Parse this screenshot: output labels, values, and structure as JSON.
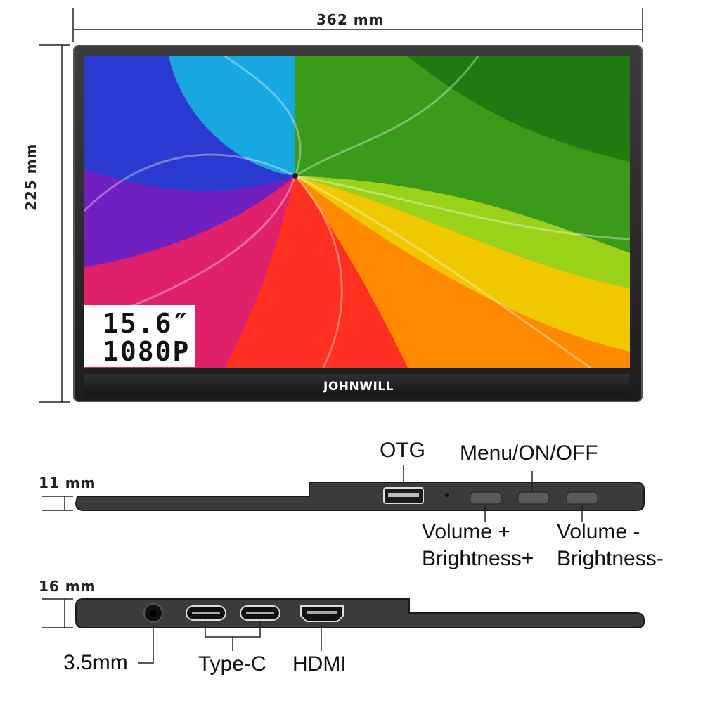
{
  "dimensions": {
    "width": "362 mm",
    "height": "225 mm",
    "top_thickness": "11 mm",
    "side_thickness": "16 mm"
  },
  "screen": {
    "size": "15.6″",
    "resolution": "1080P",
    "brand": "JOHNWILL"
  },
  "top_view": {
    "otg": "OTG",
    "menu": "Menu/ON/OFF",
    "volume_up_line1": "Volume +",
    "volume_up_line2": "Brightness+",
    "volume_down_line1": "Volume -",
    "volume_down_line2": "Brightness-"
  },
  "side_view": {
    "audio": "3.5mm",
    "typec": "Type-C",
    "hdmi": "HDMI"
  },
  "colors": {
    "bezel": "#2a2a2a",
    "body": "#3a3a3a"
  }
}
